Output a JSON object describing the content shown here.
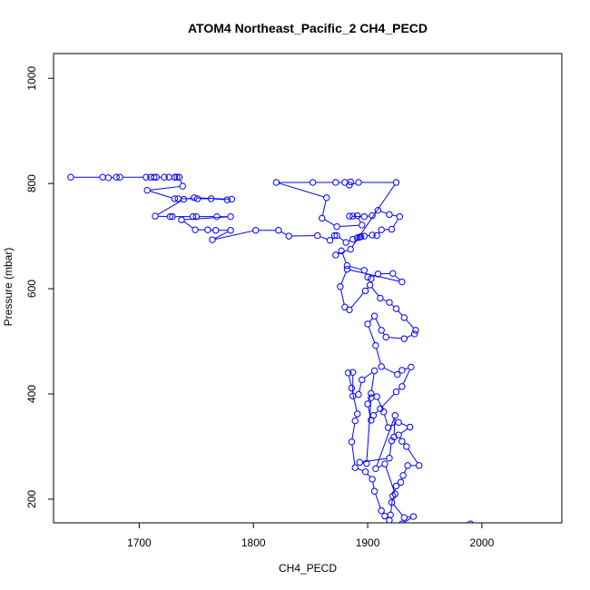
{
  "chart_data": {
    "type": "line",
    "title": "ATOM4 Northeast_Pacific_2 CH4_PECD",
    "xlabel": "CH4_PECD",
    "ylabel": "Pressure (mbar)",
    "xlim": [
      1625,
      2070
    ],
    "ylim": [
      1047,
      155
    ],
    "y_inverted": true,
    "x_ticks": [
      1700,
      1800,
      1900,
      2000
    ],
    "y_ticks": [
      200,
      400,
      600,
      800,
      1000
    ],
    "grid": false,
    "legend": "none",
    "marker": "open-circle",
    "color": "#0000ff",
    "series": [
      {
        "points": [
          [
            1640,
            812
          ],
          [
            1668,
            812
          ],
          [
            1673,
            811
          ],
          [
            1680,
            812
          ],
          [
            1683,
            812
          ],
          [
            1706,
            812
          ],
          [
            1710,
            812
          ],
          [
            1713,
            812
          ],
          [
            1715,
            812
          ],
          [
            1722,
            812
          ],
          [
            1726,
            812
          ],
          [
            1731,
            812
          ],
          [
            1733,
            812
          ],
          [
            1735,
            812
          ],
          [
            1738,
            795
          ],
          [
            1707,
            787
          ],
          [
            1731,
            771
          ],
          [
            1734,
            771
          ],
          [
            1751,
            771
          ],
          [
            1763,
            771
          ],
          [
            1777,
            769
          ],
          [
            1781,
            770
          ],
          [
            1748,
            773
          ],
          [
            1739,
            770
          ],
          [
            1714,
            738
          ],
          [
            1727,
            737
          ],
          [
            1729,
            737
          ],
          [
            1747,
            737
          ],
          [
            1750,
            737
          ],
          [
            1768,
            737
          ],
          [
            1780,
            737
          ],
          [
            1737,
            731
          ],
          [
            1749,
            712
          ],
          [
            1760,
            712
          ],
          [
            1767,
            711
          ],
          [
            1780,
            711
          ],
          [
            1764,
            693
          ],
          [
            1802,
            711
          ],
          [
            1822,
            711
          ],
          [
            1831,
            700
          ],
          [
            1856,
            701
          ],
          [
            1867,
            692
          ],
          [
            1871,
            701
          ],
          [
            1873,
            701
          ],
          [
            1881,
            688
          ],
          [
            1887,
            694
          ],
          [
            1891,
            697
          ],
          [
            1893,
            698
          ],
          [
            1894,
            699
          ],
          [
            1897,
            700
          ],
          [
            1904,
            702
          ],
          [
            1908,
            701
          ],
          [
            1912,
            712
          ],
          [
            1921,
            713
          ],
          [
            1928,
            737
          ],
          [
            1919,
            741
          ],
          [
            1909,
            749
          ],
          [
            1904,
            739
          ],
          [
            1897,
            737
          ],
          [
            1884,
            738
          ],
          [
            1887,
            738
          ],
          [
            1891,
            739
          ],
          [
            1895,
            721
          ],
          [
            1873,
            718
          ],
          [
            1860,
            734
          ],
          [
            1864,
            773
          ],
          [
            1820,
            802
          ],
          [
            1852,
            802
          ],
          [
            1872,
            802
          ],
          [
            1880,
            802
          ],
          [
            1885,
            803
          ],
          [
            1884,
            797
          ],
          [
            1892,
            802
          ],
          [
            1925,
            802
          ],
          [
            1885,
            675
          ],
          [
            1872,
            664
          ],
          [
            1877,
            672
          ],
          [
            1882,
            644
          ],
          [
            1897,
            635
          ],
          [
            1900,
            622
          ],
          [
            1903,
            619
          ],
          [
            1909,
            628
          ],
          [
            1922,
            629
          ],
          [
            1930,
            613
          ],
          [
            1882,
            637
          ],
          [
            1876,
            604
          ],
          [
            1880,
            565
          ],
          [
            1884,
            560
          ],
          [
            1898,
            596
          ],
          [
            1902,
            607
          ],
          [
            1911,
            582
          ],
          [
            1919,
            574
          ],
          [
            1925,
            562
          ],
          [
            1932,
            545
          ],
          [
            1942,
            521
          ],
          [
            1941,
            514
          ],
          [
            1932,
            505
          ],
          [
            1916,
            508
          ],
          [
            1912,
            521
          ],
          [
            1906,
            548
          ],
          [
            1900,
            533
          ],
          [
            1907,
            492
          ],
          [
            1912,
            452
          ],
          [
            1926,
            437
          ],
          [
            1930,
            445
          ],
          [
            1938,
            451
          ],
          [
            1930,
            414
          ],
          [
            1925,
            404
          ],
          [
            1911,
            372
          ],
          [
            1905,
            359
          ],
          [
            1903,
            350
          ],
          [
            1900,
            381
          ],
          [
            1903,
            401
          ],
          [
            1906,
            444
          ],
          [
            1895,
            427
          ],
          [
            1892,
            399
          ],
          [
            1887,
            396
          ],
          [
            1887,
            441
          ],
          [
            1883,
            440
          ],
          [
            1886,
            411
          ],
          [
            1891,
            362
          ],
          [
            1889,
            349
          ],
          [
            1886,
            309
          ],
          [
            1889,
            260
          ],
          [
            1898,
            252
          ],
          [
            1904,
            238
          ],
          [
            1906,
            215
          ],
          [
            1912,
            178
          ],
          [
            1915,
            168
          ],
          [
            1919,
            160
          ],
          [
            1920,
            170
          ],
          [
            1922,
            206
          ],
          [
            1925,
            225
          ],
          [
            1929,
            232
          ],
          [
            1931,
            245
          ],
          [
            1935,
            264
          ],
          [
            1945,
            264
          ],
          [
            1934,
            300
          ],
          [
            1930,
            310
          ],
          [
            1927,
            322
          ],
          [
            1937,
            337
          ],
          [
            1927,
            346
          ],
          [
            1918,
            336
          ],
          [
            1914,
            366
          ],
          [
            1908,
            395
          ],
          [
            1903,
            393
          ],
          [
            1899,
            268
          ],
          [
            1893,
            270
          ],
          [
            1919,
            278
          ],
          [
            1921,
            311
          ],
          [
            1923,
            318
          ],
          [
            1924,
            359
          ],
          [
            1907,
            258
          ],
          [
            1915,
            267
          ],
          [
            1924,
            210
          ],
          [
            1921,
            194
          ],
          [
            1932,
            165
          ],
          [
            1940,
            167
          ],
          [
            1930,
            153
          ],
          [
            1990,
            153
          ]
        ]
      }
    ]
  }
}
